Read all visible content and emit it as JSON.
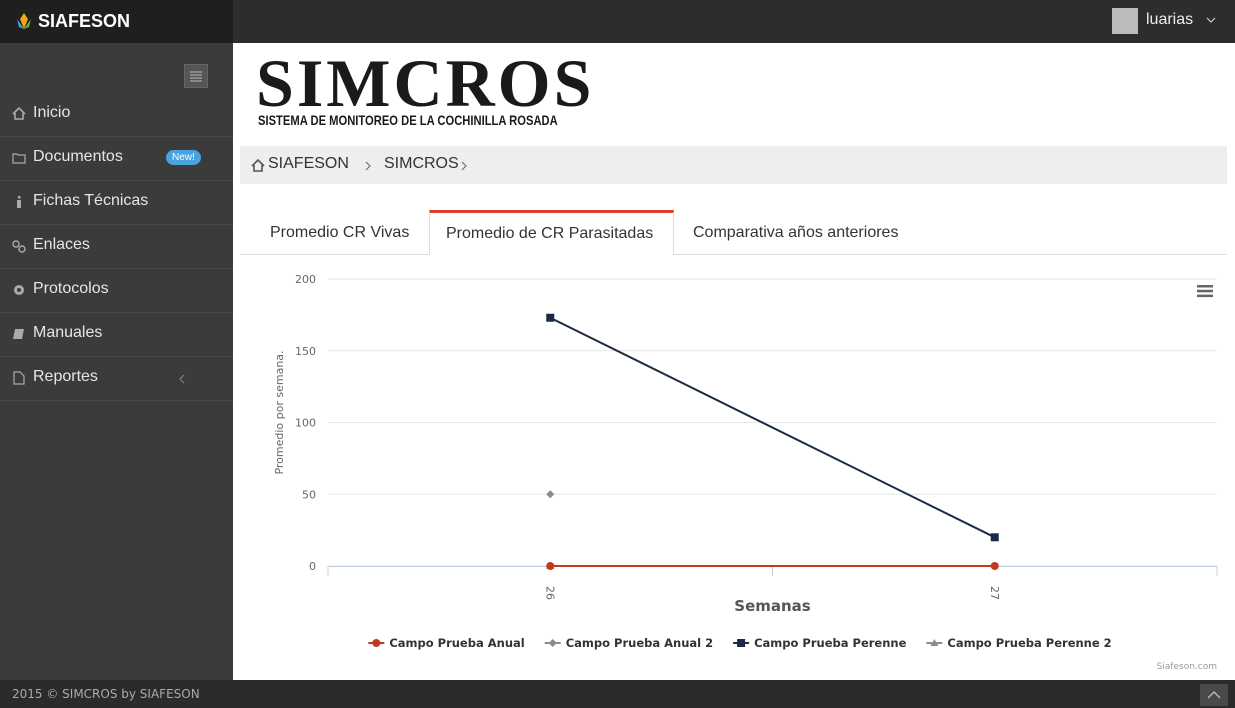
{
  "header": {
    "brand": "SIAFESON",
    "user": "luarias"
  },
  "sidebar": {
    "items": [
      {
        "label": "Inicio"
      },
      {
        "label": "Documentos",
        "badge": "New!"
      },
      {
        "label": "Fichas Técnicas"
      },
      {
        "label": "Enlaces"
      },
      {
        "label": "Protocolos"
      },
      {
        "label": "Manuales"
      },
      {
        "label": "Reportes"
      }
    ]
  },
  "logo": {
    "title": "SIMCROS",
    "subtitle": "SISTEMA DE MONITOREO DE LA COCHINILLA ROSADA"
  },
  "breadcrumb": [
    "SIAFESON",
    "SIMCROS"
  ],
  "tabs": [
    "Promedio CR Vivas",
    "Promedio de CR Parasitadas",
    "Comparativa años anteriores"
  ],
  "chart_data": {
    "type": "line",
    "x_label": "Semanas",
    "y_label": "Promedio por semana.",
    "credits": "Siafeson.com",
    "categories": [
      "26",
      "27"
    ],
    "series": [
      {
        "name": "Campo Prueba Anual",
        "color": "#c23a1e",
        "marker": "circle",
        "values": [
          0,
          0
        ]
      },
      {
        "name": "Campo Prueba Anual 2",
        "color": "#8c8c8c",
        "marker": "diamond",
        "values": [
          50,
          null
        ]
      },
      {
        "name": "Campo Prueba Perenne",
        "color": "#1c2b45",
        "marker": "square",
        "values": [
          173,
          20
        ]
      },
      {
        "name": "Campo Prueba Perenne 2",
        "color": "#8c8c8c",
        "marker": "triangle",
        "values": [
          0,
          null
        ]
      }
    ],
    "ylim": [
      0,
      200
    ],
    "yticks": [
      0,
      50,
      100,
      150,
      200
    ],
    "grid": true,
    "legend": "bottom"
  },
  "footer": {
    "text": "2015 © SIMCROS by SIAFESON"
  }
}
